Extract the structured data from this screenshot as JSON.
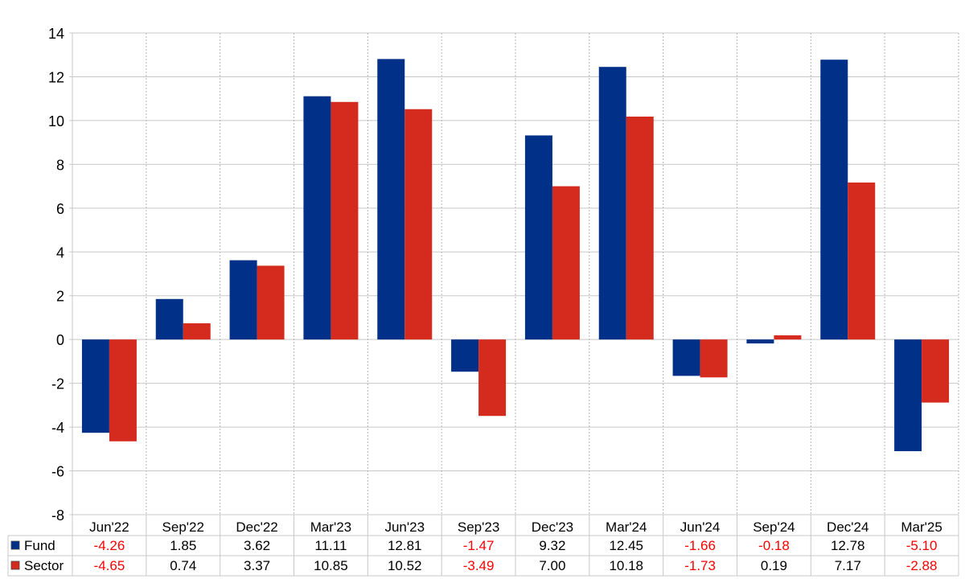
{
  "chart_data": {
    "type": "bar",
    "title": "",
    "xlabel": "",
    "ylabel": "",
    "ylim": [
      -8,
      14
    ],
    "yticks": [
      14,
      12,
      10,
      8,
      6,
      4,
      2,
      0,
      -2,
      -4,
      -6,
      -8
    ],
    "grid": true,
    "legend": "table-left",
    "categories": [
      "Jun'22",
      "Sep'22",
      "Dec'22",
      "Mar'23",
      "Jun'23",
      "Sep'23",
      "Dec'23",
      "Mar'24",
      "Jun'24",
      "Sep'24",
      "Dec'24",
      "Mar'25"
    ],
    "series": [
      {
        "name": "Fund",
        "color": "#003087",
        "values": [
          -4.26,
          1.85,
          3.62,
          11.11,
          12.81,
          -1.47,
          9.32,
          12.45,
          -1.66,
          -0.18,
          12.78,
          -5.1
        ],
        "labels": [
          "-4.26",
          "1.85",
          "3.62",
          "11.11",
          "12.81",
          "-1.47",
          "9.32",
          "12.45",
          "-1.66",
          "-0.18",
          "12.78",
          "-5.10"
        ]
      },
      {
        "name": "Sector",
        "color": "#d52b1e",
        "values": [
          -4.65,
          0.74,
          3.37,
          10.85,
          10.52,
          -3.49,
          7.0,
          10.18,
          -1.73,
          0.19,
          7.17,
          -2.88
        ],
        "labels": [
          "-4.65",
          "0.74",
          "3.37",
          "10.85",
          "10.52",
          "-3.49",
          "7.00",
          "10.18",
          "-1.73",
          "0.19",
          "7.17",
          "-2.88"
        ]
      }
    ],
    "negative_value_color": "#ff0000"
  }
}
